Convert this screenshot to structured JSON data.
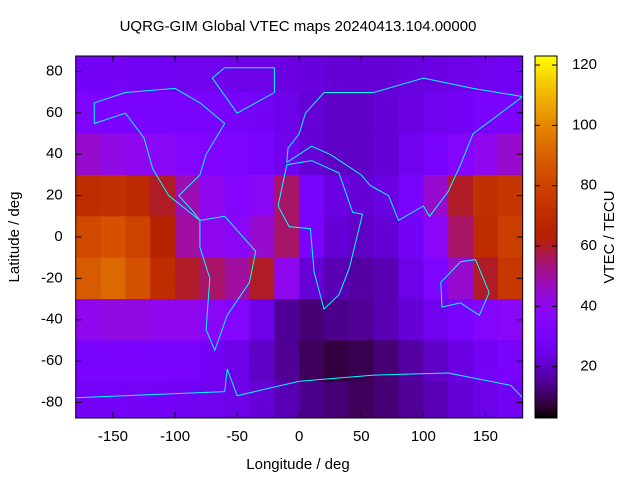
{
  "chart_data": {
    "type": "heatmap",
    "title": "UQRG-GIM Global VTEC maps 20240413.104.00000",
    "x_label": "Longitude / deg",
    "y_label": "Latitude / deg",
    "colorbar_label": "VTEC / TECU",
    "xlim": [
      -180,
      180
    ],
    "ylim": [
      -87.5,
      87.5
    ],
    "zlim": [
      3,
      123
    ],
    "xticks": [
      -150,
      -100,
      -50,
      0,
      50,
      100,
      150
    ],
    "yticks": [
      -80,
      -60,
      -40,
      -20,
      0,
      20,
      40,
      60,
      80
    ],
    "zticks": [
      20,
      40,
      60,
      80,
      100,
      120
    ],
    "x": [
      -170,
      -150,
      -130,
      -110,
      -90,
      -70,
      -50,
      -30,
      -10,
      10,
      30,
      50,
      70,
      90,
      110,
      130,
      150,
      170
    ],
    "y": [
      80,
      60,
      40,
      20,
      0,
      -20,
      -40,
      -60,
      -80
    ],
    "z": [
      [
        28,
        28,
        27,
        27,
        26,
        26,
        25,
        25,
        24,
        23,
        22,
        22,
        22,
        23,
        24,
        25,
        26,
        27
      ],
      [
        32,
        31,
        30,
        30,
        30,
        30,
        29,
        28,
        25,
        22,
        20,
        20,
        22,
        24,
        26,
        28,
        30,
        31
      ],
      [
        45,
        42,
        40,
        38,
        35,
        33,
        32,
        30,
        26,
        22,
        20,
        20,
        22,
        26,
        30,
        35,
        40,
        45
      ],
      [
        70,
        72,
        68,
        60,
        48,
        40,
        35,
        38,
        55,
        30,
        24,
        22,
        24,
        30,
        45,
        60,
        72,
        74
      ],
      [
        82,
        85,
        80,
        65,
        50,
        40,
        38,
        45,
        55,
        30,
        22,
        20,
        22,
        28,
        38,
        55,
        70,
        78
      ],
      [
        88,
        92,
        85,
        70,
        60,
        55,
        50,
        60,
        40,
        22,
        18,
        16,
        18,
        25,
        32,
        45,
        60,
        75
      ],
      [
        40,
        42,
        42,
        40,
        40,
        38,
        35,
        25,
        15,
        12,
        14,
        15,
        18,
        22,
        26,
        30,
        35,
        38
      ],
      [
        30,
        30,
        30,
        30,
        30,
        28,
        25,
        20,
        15,
        10,
        8,
        9,
        12,
        16,
        20,
        24,
        28,
        30
      ],
      [
        28,
        28,
        28,
        28,
        27,
        26,
        25,
        22,
        18,
        14,
        12,
        10,
        12,
        15,
        18,
        22,
        25,
        27
      ]
    ]
  }
}
